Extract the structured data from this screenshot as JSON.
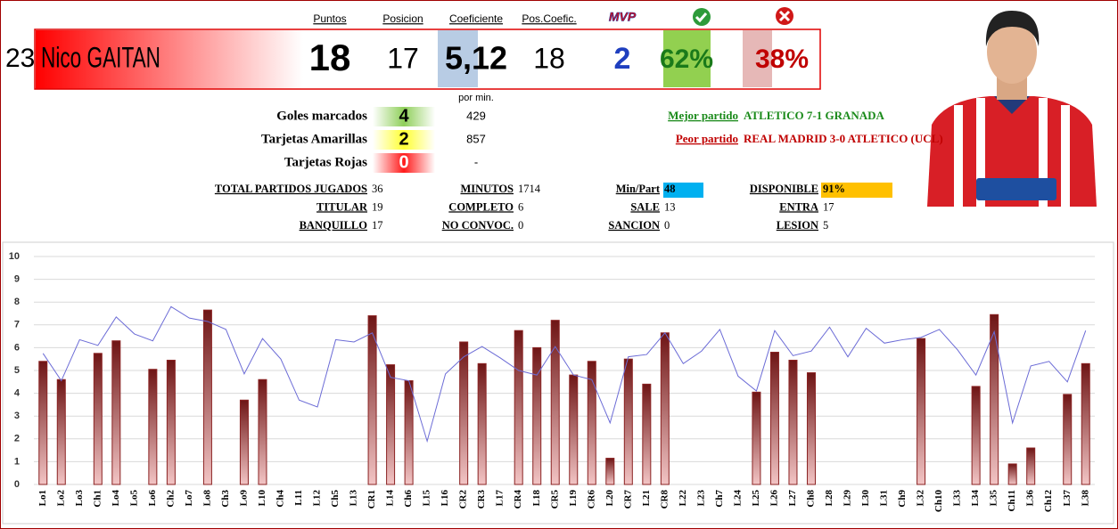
{
  "player": {
    "number": "23",
    "name": "Nico GAITAN"
  },
  "summary": {
    "columns": [
      {
        "label": "Puntos",
        "value": "18"
      },
      {
        "label": "Posicion",
        "value": "17"
      },
      {
        "label": "Coeficiente",
        "value": "5,12"
      },
      {
        "label": "Pos.Coefic.",
        "value": "18"
      },
      {
        "label": "MVP",
        "value": "2"
      }
    ],
    "wins": "62%",
    "losses": "38%"
  },
  "per_minute_label": "por min.",
  "discipline": [
    {
      "label": "Goles marcados",
      "value": "4",
      "per_min": "429"
    },
    {
      "label": "Tarjetas Amarillas",
      "value": "2",
      "per_min": "857"
    },
    {
      "label": "Tarjetas Rojas",
      "value": "0",
      "per_min": "-"
    }
  ],
  "matches": {
    "best": {
      "label": "Mejor partido",
      "value": "ATLETICO 7-1 GRANADA"
    },
    "worst": {
      "label": "Peor partido",
      "value": "REAL MADRID 3-0 ATLETICO (UCL)"
    }
  },
  "stats": [
    [
      {
        "label": "TOTAL PARTIDOS JUGADOS",
        "value": "36"
      },
      {
        "label": "MINUTOS",
        "value": "1714"
      },
      {
        "label": "Min/Part",
        "value": "48"
      },
      {
        "label": "DISPONIBLE",
        "value": "91%"
      }
    ],
    [
      {
        "label": "TITULAR",
        "value": "19"
      },
      {
        "label": "COMPLETO",
        "value": "6"
      },
      {
        "label": "SALE",
        "value": "13"
      },
      {
        "label": "ENTRA",
        "value": "17"
      }
    ],
    [
      {
        "label": "BANQUILLO",
        "value": "17"
      },
      {
        "label": "NO CONVOC.",
        "value": "0"
      },
      {
        "label": "SANCION",
        "value": "0"
      },
      {
        "label": "LESION",
        "value": "5"
      }
    ]
  ],
  "chart_data": {
    "type": "bar",
    "categories": [
      "Lo1",
      "Lo2",
      "Lo3",
      "Ch1",
      "Lo4",
      "Lo5",
      "Lo6",
      "Ch2",
      "Lo7",
      "Lo8",
      "Ch3",
      "Lo9",
      "L10",
      "Ch4",
      "L11",
      "L12",
      "Ch5",
      "L13",
      "CR1",
      "L14",
      "Ch6",
      "L15",
      "L16",
      "CR2",
      "CR3",
      "L17",
      "CR4",
      "L18",
      "CR5",
      "L19",
      "CR6",
      "L20",
      "CR7",
      "L21",
      "CR8",
      "L22",
      "L23",
      "Ch7",
      "L24",
      "L25",
      "L26",
      "L27",
      "Ch8",
      "L28",
      "L29",
      "L30",
      "L31",
      "Ch9",
      "L32",
      "Ch10",
      "L33",
      "L34",
      "L35",
      "Ch11",
      "L36",
      "Ch12",
      "L37",
      "L38"
    ],
    "series": [
      {
        "type": "bar",
        "color": "#8b2323",
        "values": [
          5.4,
          4.6,
          null,
          5.75,
          6.3,
          null,
          5.05,
          5.45,
          null,
          7.65,
          null,
          3.7,
          4.6,
          null,
          null,
          null,
          null,
          null,
          7.4,
          5.25,
          4.55,
          null,
          null,
          6.25,
          5.3,
          null,
          6.75,
          6.0,
          7.2,
          4.8,
          5.4,
          1.15,
          5.5,
          4.4,
          6.65,
          null,
          null,
          null,
          null,
          4.05,
          5.8,
          5.45,
          4.9,
          null,
          null,
          null,
          null,
          null,
          6.4,
          null,
          null,
          4.3,
          7.45,
          0.9,
          1.6,
          null,
          3.95,
          5.3
        ]
      },
      {
        "type": "line",
        "color": "#6b6bd6",
        "values": [
          5.75,
          4.55,
          6.35,
          6.1,
          7.35,
          6.6,
          6.3,
          7.8,
          7.3,
          7.15,
          6.8,
          4.85,
          6.4,
          5.5,
          3.7,
          3.4,
          6.35,
          6.25,
          6.65,
          4.7,
          4.55,
          1.9,
          4.85,
          5.6,
          6.05,
          5.55,
          5.0,
          4.8,
          6.05,
          4.8,
          4.6,
          2.7,
          5.6,
          5.7,
          6.65,
          5.3,
          5.85,
          6.8,
          4.75,
          4.1,
          6.75,
          5.65,
          5.85,
          6.9,
          5.6,
          6.85,
          6.2,
          6.35,
          6.45,
          6.8,
          5.9,
          4.8,
          6.7,
          2.7,
          5.2,
          5.4,
          4.5,
          6.75
        ]
      }
    ],
    "ylim": [
      0,
      10
    ],
    "yticks": [
      0,
      1,
      2,
      3,
      4,
      5,
      6,
      7,
      8,
      9,
      10
    ],
    "grid": true
  }
}
